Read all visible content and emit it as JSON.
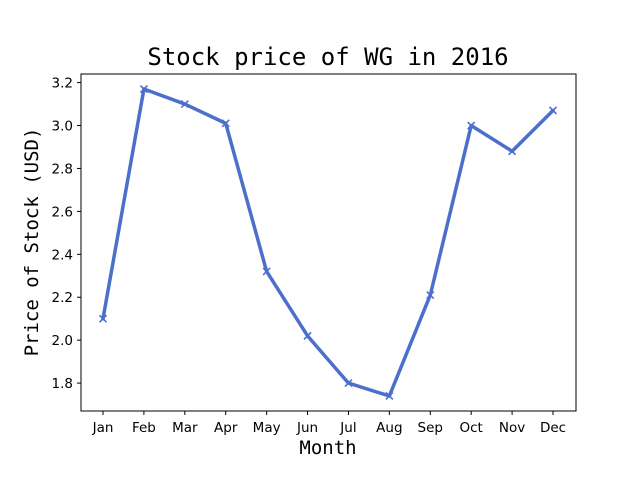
{
  "chart_data": {
    "type": "line",
    "title": "Stock price of WG in 2016",
    "xlabel": "Month",
    "ylabel": "Price of Stock (USD)",
    "categories": [
      "Jan",
      "Feb",
      "Mar",
      "Apr",
      "May",
      "Jun",
      "Jul",
      "Aug",
      "Sep",
      "Oct",
      "Nov",
      "Dec"
    ],
    "series": [
      {
        "values": [
          2.1,
          3.17,
          3.1,
          3.01,
          2.32,
          2.02,
          1.8,
          1.74,
          2.21,
          3.0,
          2.88,
          3.07
        ],
        "color": "#4c6fcc",
        "marker": "x"
      }
    ],
    "ylim": [
      1.67,
      3.24
    ],
    "yticks": [
      "1.8",
      "2.0",
      "2.2",
      "2.4",
      "2.6",
      "2.8",
      "3.0",
      "3.2"
    ],
    "grid": false,
    "legend": "none"
  }
}
